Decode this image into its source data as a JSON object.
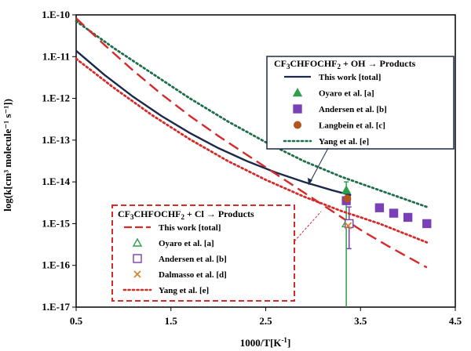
{
  "chart_data": {
    "type": "line",
    "title": "",
    "xlabel": "1000/T[K",
    "xlabel_sup": "-1",
    "xlabel_end": "]",
    "ylabel": "log(k[cm³ molecule⁻¹ s⁻¹])",
    "xlim": [
      0.5,
      4.5
    ],
    "ylim_exp": [
      -17,
      -10
    ],
    "x_ticks": [
      "0.5",
      "1.5",
      "2.5",
      "3.5",
      "4.5"
    ],
    "x_tick_values": [
      0.5,
      1.5,
      2.5,
      3.5,
      4.5
    ],
    "y_ticks": [
      "1.E-17",
      "1.E-16",
      "1.E-15",
      "1.E-14",
      "1.E-13",
      "1.E-12",
      "1.E-11",
      "1.E-10"
    ],
    "y_tick_exps": [
      -17,
      -16,
      -15,
      -14,
      -13,
      -12,
      -11,
      -10
    ],
    "legends": [
      {
        "title_parts": [
          "CF",
          "3",
          "CHFOCHF",
          "2",
          " + OH → Products"
        ],
        "entries": [
          {
            "label": "This work [total]",
            "symbol": "line-solid",
            "color": "#1b2a4a"
          },
          {
            "label": "Oyaro et al. [a]",
            "symbol": "triangle-filled",
            "color": "#2e9e4f"
          },
          {
            "label": "Andersen et al. [b]",
            "symbol": "square-filled",
            "color": "#7a40b8"
          },
          {
            "label": "Langbein et al. [c]",
            "symbol": "circle-filled",
            "color": "#b3541e"
          },
          {
            "label": "Yang et al. [e]",
            "symbol": "line-dotted",
            "color": "#1f6e4a"
          }
        ]
      },
      {
        "title_parts": [
          "CF",
          "3",
          "CHFOCHF",
          "2",
          " + Cl → Products"
        ],
        "entries": [
          {
            "label": "This work [total]",
            "symbol": "line-dashed",
            "color": "#d42a2a"
          },
          {
            "label": "Oyaro et al. [a]",
            "symbol": "triangle-open",
            "color": "#2e9e4f"
          },
          {
            "label": "Andersen et al. [b]",
            "symbol": "square-open",
            "color": "#7a40b8"
          },
          {
            "label": "Dalmasso et al. [d]",
            "symbol": "cross",
            "color": "#d4862a"
          },
          {
            "label": "Yang et al. [e]",
            "symbol": "line-dotted",
            "color": "#d42a2a"
          }
        ]
      }
    ],
    "series": [
      {
        "name": "OH This work [total]",
        "kind": "line",
        "style": "solid",
        "color": "#1b2a4a",
        "x": [
          0.5,
          0.8,
          1.1,
          1.4,
          1.7,
          2.0,
          2.3,
          2.6,
          2.9,
          3.2,
          3.4
        ],
        "log10k": [
          -10.86,
          -11.44,
          -11.96,
          -12.42,
          -12.83,
          -13.19,
          -13.5,
          -13.77,
          -14.0,
          -14.2,
          -14.32
        ]
      },
      {
        "name": "OH Yang et al. [e]",
        "kind": "line",
        "style": "dotted",
        "color": "#1f6e4a",
        "x": [
          0.5,
          0.9,
          1.3,
          1.7,
          2.1,
          2.5,
          2.9,
          3.3,
          3.7,
          4.2
        ],
        "log10k": [
          -10.15,
          -10.8,
          -11.4,
          -12.0,
          -12.55,
          -13.05,
          -13.5,
          -13.88,
          -14.2,
          -14.6
        ]
      },
      {
        "name": "Cl This work [total]",
        "kind": "line",
        "style": "dashed",
        "color": "#d42a2a",
        "x": [
          0.5,
          0.8,
          1.1,
          1.4,
          1.7,
          2.0,
          2.3,
          2.6,
          2.9,
          3.2,
          3.5,
          3.8,
          4.2
        ],
        "log10k": [
          -10.08,
          -10.72,
          -11.33,
          -11.9,
          -12.42,
          -12.9,
          -13.35,
          -13.8,
          -14.25,
          -14.7,
          -15.15,
          -15.55,
          -16.05
        ]
      },
      {
        "name": "Cl Yang et al. [e]",
        "kind": "line",
        "style": "dotted",
        "color": "#d42a2a",
        "x": [
          0.5,
          0.9,
          1.3,
          1.7,
          2.1,
          2.5,
          2.9,
          3.3,
          3.7,
          4.2
        ],
        "log10k": [
          -11.05,
          -11.75,
          -12.4,
          -12.98,
          -13.5,
          -13.95,
          -14.35,
          -14.7,
          -15.0,
          -15.45
        ]
      },
      {
        "name": "Oyaro et al. [a] (OH)",
        "kind": "point",
        "marker": "triangle-filled",
        "color": "#2e9e4f",
        "x": [
          3.35
        ],
        "log10k": [
          -14.2
        ]
      },
      {
        "name": "Andersen et al. [b] (OH)",
        "kind": "point",
        "marker": "square-filled",
        "color": "#7a40b8",
        "x": [
          3.35,
          3.7,
          3.85,
          4.0,
          4.2
        ],
        "log10k": [
          -14.45,
          -14.62,
          -14.75,
          -14.85,
          -15.0
        ]
      },
      {
        "name": "Langbein et al. [c] (OH)",
        "kind": "point",
        "marker": "circle-filled",
        "color": "#b3541e",
        "x": [
          3.36
        ],
        "log10k": [
          -14.4
        ]
      },
      {
        "name": "Oyaro et al. [a] (Cl)",
        "kind": "point",
        "marker": "triangle-open",
        "color": "#2e9e4f",
        "x": [
          3.35
        ],
        "log10k": [
          -15.0
        ]
      },
      {
        "name": "Andersen et al. [b] (Cl)",
        "kind": "point",
        "marker": "square-open",
        "color": "#7a40b8",
        "x": [
          3.38
        ],
        "log10k": [
          -15.0
        ]
      },
      {
        "name": "Dalmasso et al. [d] (Cl)",
        "kind": "point",
        "marker": "cross",
        "color": "#d4862a",
        "x": [
          3.37
        ],
        "log10k": [
          -15.05
        ]
      }
    ],
    "error_bars": [
      {
        "x": 3.35,
        "low": -17.0,
        "high": -14.0,
        "color": "#2e9e4f"
      },
      {
        "x": 3.38,
        "low": -15.6,
        "high": -14.6,
        "color": "#7a40b8"
      }
    ]
  }
}
